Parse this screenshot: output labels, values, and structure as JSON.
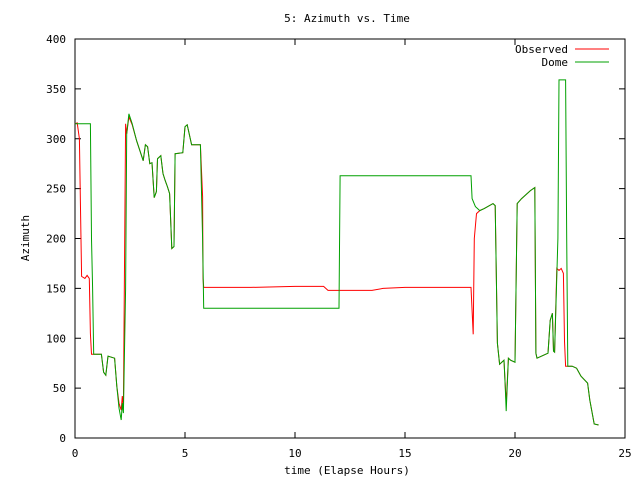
{
  "chart_data": {
    "type": "line",
    "title": "5: Azimuth vs. Time",
    "xlabel": "time (Elapse Hours)",
    "ylabel": "Azimuth",
    "xlim": [
      0,
      25
    ],
    "ylim": [
      0,
      400
    ],
    "x_ticks": [
      "0",
      "5",
      "10",
      "15",
      "20",
      "25"
    ],
    "y_ticks": [
      "0",
      "50",
      "100",
      "150",
      "200",
      "250",
      "300",
      "350",
      "400"
    ],
    "grid": false,
    "legend_position": "top-right",
    "series": [
      {
        "name": "Observed",
        "color": "#ff0000",
        "points": [
          [
            0.0,
            315
          ],
          [
            0.1,
            316
          ],
          [
            0.2,
            300
          ],
          [
            0.25,
            230
          ],
          [
            0.3,
            162
          ],
          [
            0.45,
            160
          ],
          [
            0.55,
            163
          ],
          [
            0.65,
            160
          ],
          [
            0.7,
            105
          ],
          [
            0.75,
            84
          ],
          [
            1.2,
            84
          ],
          [
            1.3,
            66
          ],
          [
            1.4,
            63
          ],
          [
            1.5,
            82
          ],
          [
            1.8,
            80
          ],
          [
            1.9,
            52
          ],
          [
            2.0,
            35
          ],
          [
            2.1,
            28
          ],
          [
            2.15,
            42
          ],
          [
            2.2,
            30
          ],
          [
            2.3,
            315
          ],
          [
            2.35,
            305
          ],
          [
            2.45,
            322
          ],
          [
            2.6,
            314
          ],
          [
            2.8,
            298
          ],
          [
            3.1,
            278
          ],
          [
            3.2,
            294
          ],
          [
            3.3,
            292
          ],
          [
            3.4,
            275
          ],
          [
            3.5,
            276
          ],
          [
            3.6,
            241
          ],
          [
            3.7,
            247
          ],
          [
            3.75,
            280
          ],
          [
            3.9,
            283
          ],
          [
            4.0,
            265
          ],
          [
            4.1,
            258
          ],
          [
            4.2,
            252
          ],
          [
            4.3,
            245
          ],
          [
            4.4,
            190
          ],
          [
            4.5,
            192
          ],
          [
            4.55,
            285
          ],
          [
            4.9,
            286
          ],
          [
            5.0,
            312
          ],
          [
            5.1,
            314
          ],
          [
            5.3,
            294
          ],
          [
            5.7,
            294
          ],
          [
            5.8,
            242
          ],
          [
            5.82,
            160
          ],
          [
            5.85,
            151
          ],
          [
            8.0,
            151
          ],
          [
            10.0,
            152
          ],
          [
            11.3,
            152
          ],
          [
            11.5,
            148
          ],
          [
            13.0,
            148
          ],
          [
            13.5,
            148
          ],
          [
            14.0,
            150
          ],
          [
            15.0,
            151
          ],
          [
            18.0,
            151
          ],
          [
            18.1,
            104
          ],
          [
            18.15,
            200
          ],
          [
            18.25,
            225
          ],
          [
            18.4,
            228
          ],
          [
            18.6,
            230
          ],
          [
            19.0,
            235
          ],
          [
            19.1,
            233
          ],
          [
            19.2,
            95
          ],
          [
            19.3,
            74
          ],
          [
            19.5,
            78
          ],
          [
            19.55,
            55
          ],
          [
            19.6,
            35
          ],
          [
            19.7,
            80
          ],
          [
            19.8,
            78
          ],
          [
            20.0,
            76
          ],
          [
            20.1,
            235
          ],
          [
            20.3,
            240
          ],
          [
            20.5,
            244
          ],
          [
            20.7,
            248
          ],
          [
            20.9,
            251
          ],
          [
            20.95,
            85
          ],
          [
            21.0,
            80
          ],
          [
            21.2,
            82
          ],
          [
            21.5,
            85
          ],
          [
            21.6,
            118
          ],
          [
            21.7,
            125
          ],
          [
            21.75,
            87
          ],
          [
            21.8,
            86
          ],
          [
            21.9,
            170
          ],
          [
            22.0,
            168
          ],
          [
            22.1,
            170
          ],
          [
            22.2,
            165
          ],
          [
            22.25,
            97
          ],
          [
            22.3,
            72
          ],
          [
            22.6,
            72
          ],
          [
            22.8,
            70
          ],
          [
            23.0,
            62
          ],
          [
            23.3,
            55
          ],
          [
            23.4,
            38
          ],
          [
            23.6,
            14
          ],
          [
            23.8,
            13
          ]
        ]
      },
      {
        "name": "Dome",
        "color": "#00a000",
        "points": [
          [
            0.0,
            315
          ],
          [
            0.7,
            315
          ],
          [
            0.75,
            200
          ],
          [
            0.8,
            150
          ],
          [
            0.85,
            84
          ],
          [
            1.2,
            84
          ],
          [
            1.3,
            66
          ],
          [
            1.4,
            63
          ],
          [
            1.5,
            82
          ],
          [
            1.8,
            80
          ],
          [
            1.9,
            52
          ],
          [
            2.0,
            30
          ],
          [
            2.1,
            18
          ],
          [
            2.15,
            35
          ],
          [
            2.2,
            25
          ],
          [
            2.3,
            150
          ],
          [
            2.35,
            305
          ],
          [
            2.45,
            325
          ],
          [
            2.6,
            315
          ],
          [
            2.8,
            298
          ],
          [
            3.1,
            278
          ],
          [
            3.2,
            294
          ],
          [
            3.3,
            292
          ],
          [
            3.4,
            275
          ],
          [
            3.5,
            276
          ],
          [
            3.6,
            241
          ],
          [
            3.7,
            247
          ],
          [
            3.75,
            280
          ],
          [
            3.9,
            283
          ],
          [
            4.0,
            265
          ],
          [
            4.1,
            258
          ],
          [
            4.2,
            252
          ],
          [
            4.3,
            245
          ],
          [
            4.4,
            190
          ],
          [
            4.5,
            192
          ],
          [
            4.55,
            285
          ],
          [
            4.9,
            286
          ],
          [
            5.0,
            312
          ],
          [
            5.1,
            314
          ],
          [
            5.3,
            294
          ],
          [
            5.7,
            294
          ],
          [
            5.8,
            200
          ],
          [
            5.85,
            130
          ],
          [
            12.0,
            130
          ],
          [
            12.05,
            263
          ],
          [
            18.0,
            263
          ],
          [
            18.05,
            240
          ],
          [
            18.2,
            232
          ],
          [
            18.4,
            228
          ],
          [
            18.6,
            230
          ],
          [
            19.0,
            235
          ],
          [
            19.1,
            233
          ],
          [
            19.2,
            95
          ],
          [
            19.3,
            74
          ],
          [
            19.5,
            78
          ],
          [
            19.55,
            55
          ],
          [
            19.6,
            27
          ],
          [
            19.7,
            80
          ],
          [
            19.8,
            78
          ],
          [
            20.0,
            76
          ],
          [
            20.1,
            235
          ],
          [
            20.3,
            240
          ],
          [
            20.5,
            244
          ],
          [
            20.7,
            248
          ],
          [
            20.9,
            251
          ],
          [
            20.95,
            85
          ],
          [
            21.0,
            80
          ],
          [
            21.2,
            82
          ],
          [
            21.5,
            85
          ],
          [
            21.6,
            118
          ],
          [
            21.7,
            125
          ],
          [
            21.75,
            87
          ],
          [
            21.8,
            86
          ],
          [
            21.95,
            200
          ],
          [
            22.0,
            359
          ],
          [
            22.3,
            359
          ],
          [
            22.35,
            200
          ],
          [
            22.4,
            72
          ],
          [
            22.6,
            72
          ],
          [
            22.8,
            70
          ],
          [
            23.0,
            62
          ],
          [
            23.3,
            55
          ],
          [
            23.4,
            38
          ],
          [
            23.6,
            14
          ],
          [
            23.8,
            13
          ]
        ]
      }
    ]
  }
}
